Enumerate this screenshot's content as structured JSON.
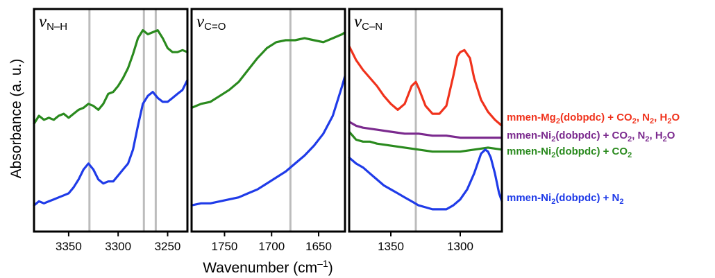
{
  "chart_data": {
    "type": "line",
    "ylabel": "Absorbance (a. u.)",
    "xlabel_main": "Wavenumber (cm",
    "xlabel_exp": "–1",
    "xlabel_close": ")",
    "legend": [
      {
        "name_parts": [
          [
            "mmen-Mg",
            false
          ],
          [
            "2",
            true
          ],
          [
            "(dobpdc) + CO",
            false
          ],
          [
            "2",
            true
          ],
          [
            ", N",
            false
          ],
          [
            "2",
            true
          ],
          [
            ", H",
            false
          ],
          [
            "2",
            true
          ],
          [
            "O",
            false
          ]
        ],
        "color": "#f0321c"
      },
      {
        "name_parts": [
          [
            "mmen-Ni",
            false
          ],
          [
            "2",
            true
          ],
          [
            "(dobpdc) + CO",
            false
          ],
          [
            "2",
            true
          ],
          [
            ", N",
            false
          ],
          [
            "2",
            true
          ],
          [
            ", H",
            false
          ],
          [
            "2",
            true
          ],
          [
            "O",
            false
          ]
        ],
        "color": "#7b2a8e"
      },
      {
        "name_parts": [
          [
            "mmen-Ni",
            false
          ],
          [
            "2",
            true
          ],
          [
            "(dobpdc) + CO",
            false
          ],
          [
            "2",
            true
          ]
        ],
        "color": "#2a8a1e"
      },
      {
        "name_parts": [
          [
            "mmen-Ni",
            false
          ],
          [
            "2",
            true
          ],
          [
            "(dobpdc) + N",
            false
          ],
          [
            "2",
            true
          ]
        ],
        "color": "#1f3be8"
      }
    ],
    "panels": [
      {
        "label_main": "ν",
        "label_sub": "N–H",
        "xlim": [
          3385,
          3230
        ],
        "xticks": [
          "3350",
          "3300",
          "3250"
        ],
        "xtick_values": [
          3350,
          3300,
          3250
        ],
        "ylim": [
          0,
          1
        ],
        "vlines": [
          3329,
          3274,
          3262
        ],
        "series": [
          {
            "color": "#2a8a1e",
            "x": [
              3385,
              3380,
              3375,
              3370,
              3365,
              3360,
              3355,
              3350,
              3345,
              3340,
              3335,
              3330,
              3325,
              3320,
              3315,
              3310,
              3305,
              3300,
              3295,
              3290,
              3285,
              3280,
              3275,
              3270,
              3265,
              3260,
              3255,
              3250,
              3245,
              3240,
              3235,
              3230
            ],
            "y": [
              0.5,
              0.54,
              0.52,
              0.53,
              0.52,
              0.54,
              0.55,
              0.53,
              0.55,
              0.57,
              0.58,
              0.6,
              0.59,
              0.57,
              0.6,
              0.65,
              0.66,
              0.69,
              0.73,
              0.78,
              0.85,
              0.93,
              0.97,
              0.95,
              0.96,
              0.97,
              0.93,
              0.88,
              0.86,
              0.86,
              0.87,
              0.86
            ]
          },
          {
            "color": "#1f3be8",
            "x": [
              3385,
              3380,
              3375,
              3370,
              3365,
              3360,
              3355,
              3350,
              3345,
              3340,
              3335,
              3330,
              3325,
              3320,
              3315,
              3310,
              3305,
              3300,
              3295,
              3290,
              3285,
              3280,
              3275,
              3270,
              3265,
              3260,
              3255,
              3250,
              3245,
              3240,
              3235,
              3230
            ],
            "y": [
              0.09,
              0.11,
              0.1,
              0.11,
              0.12,
              0.13,
              0.14,
              0.15,
              0.18,
              0.22,
              0.27,
              0.3,
              0.27,
              0.22,
              0.2,
              0.21,
              0.21,
              0.24,
              0.27,
              0.3,
              0.37,
              0.49,
              0.6,
              0.64,
              0.66,
              0.63,
              0.61,
              0.61,
              0.63,
              0.65,
              0.67,
              0.72
            ]
          }
        ]
      },
      {
        "label_main": "ν",
        "label_sub": "C=O",
        "xlim": [
          1785,
          1622
        ],
        "xticks": [
          "1750",
          "1700",
          "1650"
        ],
        "xtick_values": [
          1750,
          1700,
          1650
        ],
        "ylim": [
          0,
          1
        ],
        "vlines": [
          1680
        ],
        "series": [
          {
            "color": "#2a8a1e",
            "x": [
              1785,
              1775,
              1765,
              1755,
              1745,
              1735,
              1725,
              1715,
              1705,
              1695,
              1685,
              1675,
              1665,
              1655,
              1645,
              1635,
              1625,
              1622
            ],
            "y": [
              0.58,
              0.6,
              0.61,
              0.64,
              0.67,
              0.71,
              0.77,
              0.83,
              0.88,
              0.91,
              0.92,
              0.92,
              0.93,
              0.92,
              0.91,
              0.93,
              0.95,
              0.96
            ]
          },
          {
            "color": "#1f3be8",
            "x": [
              1785,
              1775,
              1765,
              1755,
              1745,
              1735,
              1725,
              1715,
              1705,
              1695,
              1685,
              1675,
              1665,
              1655,
              1645,
              1635,
              1625,
              1622
            ],
            "y": [
              0.09,
              0.1,
              0.1,
              0.11,
              0.12,
              0.13,
              0.15,
              0.17,
              0.2,
              0.23,
              0.26,
              0.3,
              0.34,
              0.39,
              0.45,
              0.54,
              0.69,
              0.74
            ]
          }
        ]
      },
      {
        "label_main": "ν",
        "label_sub": "C–N",
        "xlim": [
          1380,
          1270
        ],
        "xticks": [
          "1350",
          "1300"
        ],
        "xtick_values": [
          1350,
          1300
        ],
        "ylim": [
          0,
          1
        ],
        "vlines": [
          1332
        ],
        "series": [
          {
            "color": "#f0321c",
            "x": [
              1380,
              1375,
              1370,
              1365,
              1360,
              1355,
              1350,
              1345,
              1340,
              1335,
              1332,
              1330,
              1325,
              1320,
              1315,
              1310,
              1305,
              1302,
              1300,
              1297,
              1293,
              1290,
              1285,
              1280,
              1275,
              1270
            ],
            "y": [
              0.89,
              0.82,
              0.77,
              0.73,
              0.69,
              0.64,
              0.6,
              0.57,
              0.6,
              0.69,
              0.71,
              0.68,
              0.59,
              0.55,
              0.55,
              0.59,
              0.74,
              0.84,
              0.86,
              0.87,
              0.83,
              0.73,
              0.62,
              0.56,
              0.52,
              0.49
            ]
          },
          {
            "color": "#7b2a8e",
            "x": [
              1380,
              1375,
              1370,
              1360,
              1350,
              1340,
              1330,
              1320,
              1310,
              1300,
              1290,
              1280,
              1270
            ],
            "y": [
              0.51,
              0.49,
              0.48,
              0.47,
              0.46,
              0.45,
              0.45,
              0.44,
              0.44,
              0.43,
              0.43,
              0.43,
              0.43
            ]
          },
          {
            "color": "#2a8a1e",
            "x": [
              1380,
              1375,
              1370,
              1365,
              1360,
              1350,
              1340,
              1330,
              1320,
              1310,
              1300,
              1290,
              1280,
              1270
            ],
            "y": [
              0.46,
              0.42,
              0.41,
              0.41,
              0.4,
              0.39,
              0.38,
              0.37,
              0.36,
              0.36,
              0.36,
              0.37,
              0.38,
              0.37
            ]
          },
          {
            "color": "#1f3be8",
            "x": [
              1380,
              1375,
              1370,
              1365,
              1360,
              1355,
              1350,
              1345,
              1340,
              1335,
              1330,
              1325,
              1320,
              1315,
              1310,
              1305,
              1300,
              1295,
              1290,
              1285,
              1282,
              1280,
              1278,
              1275,
              1272,
              1270
            ],
            "y": [
              0.33,
              0.3,
              0.28,
              0.25,
              0.22,
              0.19,
              0.17,
              0.15,
              0.13,
              0.11,
              0.09,
              0.08,
              0.07,
              0.07,
              0.07,
              0.09,
              0.12,
              0.17,
              0.25,
              0.35,
              0.37,
              0.36,
              0.33,
              0.25,
              0.15,
              0.11
            ]
          }
        ]
      }
    ]
  }
}
